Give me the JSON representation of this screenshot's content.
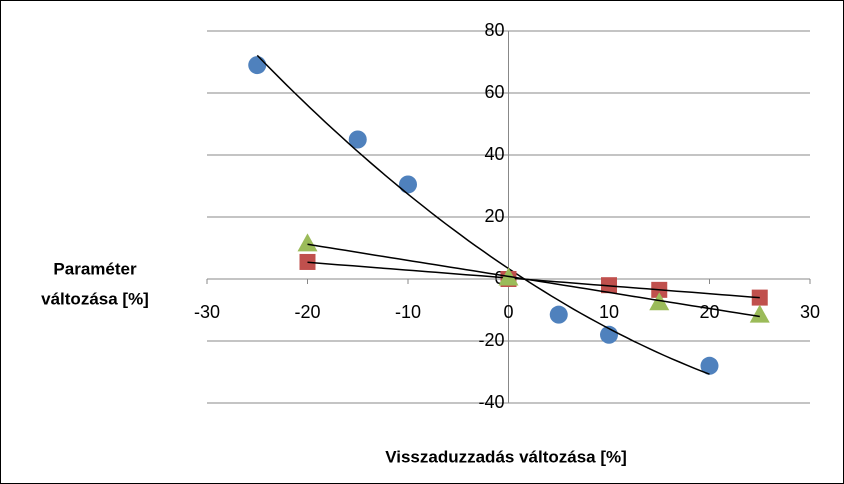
{
  "chart_data": {
    "type": "scatter",
    "xlabel": "Visszaduzzadás változása [%]",
    "ylabel": [
      "Paraméter",
      "változása [%]"
    ],
    "xlim": [
      -30,
      30
    ],
    "xticks": [
      -30,
      -20,
      -10,
      0,
      10,
      20,
      30
    ],
    "ylim": [
      -40,
      80
    ],
    "yticks": [
      -40,
      -20,
      0,
      20,
      40,
      60,
      80
    ],
    "grid": true,
    "series": [
      {
        "color": "#4f81bd",
        "marker": "circle",
        "trendline": "polynomial-2",
        "x": [
          -25,
          -15,
          -10,
          5,
          10,
          20
        ],
        "values": [
          69,
          45,
          30.5,
          -11.5,
          -18,
          -28
        ]
      },
      {
        "color": "#c0504d",
        "marker": "square",
        "trendline": "linear",
        "x": [
          -20,
          0,
          10,
          15,
          25
        ],
        "values": [
          5.5,
          0,
          -2,
          -3.5,
          -6
        ]
      },
      {
        "color": "#9bbb59",
        "marker": "triangle",
        "trendline": "linear",
        "x": [
          -20,
          0,
          15,
          25
        ],
        "values": [
          11.5,
          0.5,
          -7.5,
          -11.5
        ]
      }
    ]
  }
}
